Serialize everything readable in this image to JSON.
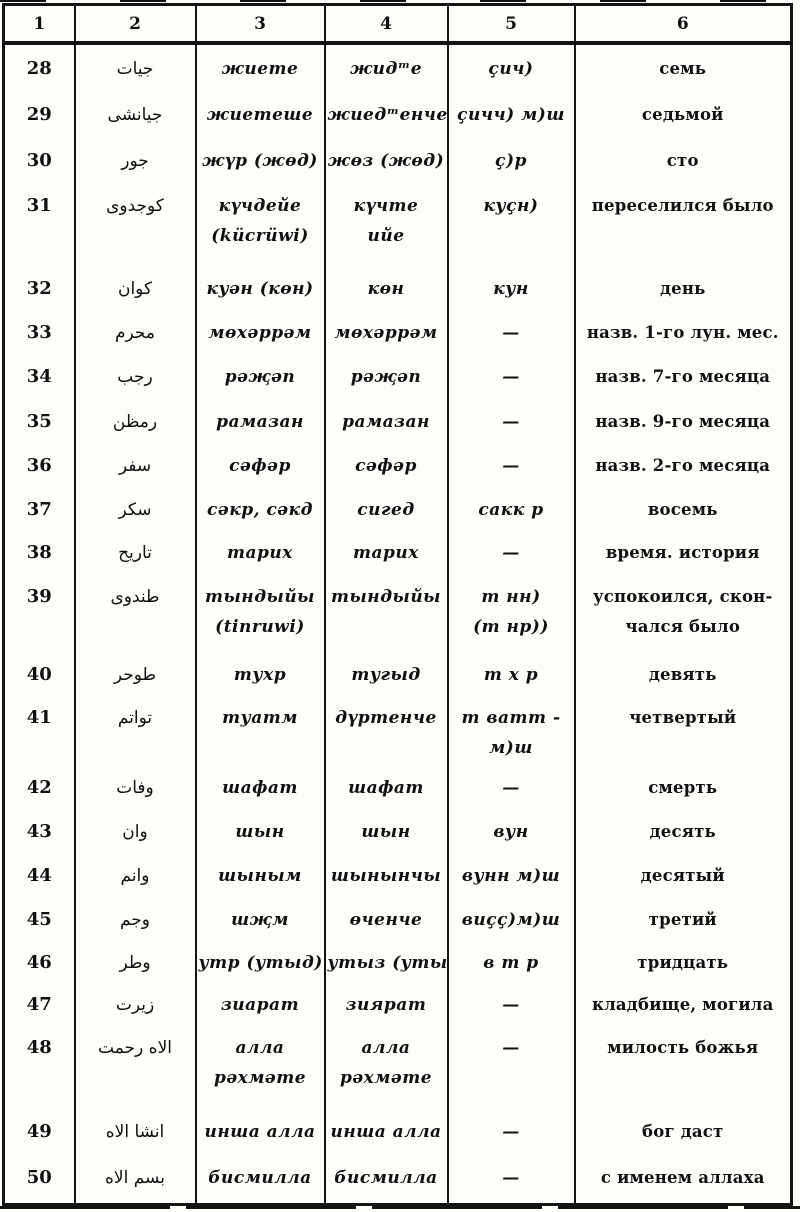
{
  "page": {
    "paper_color": "#fdfdfa",
    "ink_color": "#141414"
  },
  "table": {
    "headers": [
      "1",
      "2",
      "3",
      "4",
      "5",
      "6"
    ],
    "rows": [
      {
        "num": "28",
        "arabic": "جيات",
        "col3": [
          "жиете"
        ],
        "col4": [
          "жидᵐе"
        ],
        "col5": [
          "çич)"
        ],
        "meaning": [
          "семь"
        ]
      },
      {
        "num": "29",
        "arabic": "جيانشى",
        "col3": [
          "жиетеше"
        ],
        "col4": [
          "жиедᵐенче"
        ],
        "col5": [
          "çичч) м)ш"
        ],
        "meaning": [
          "седьмой"
        ]
      },
      {
        "num": "30",
        "arabic": "جور",
        "col3": [
          "жүр (жөд)"
        ],
        "col4": [
          "жөз (жөд)"
        ],
        "col5": [
          "ç)р"
        ],
        "meaning": [
          "сто"
        ]
      },
      {
        "num": "31",
        "arabic": "كوجدوى",
        "col3": [
          "күчдейе",
          "(kücrüwi)"
        ],
        "col4": [
          "күчте",
          "ийе"
        ],
        "col5": [
          "куçн)"
        ],
        "meaning": [
          "переселился было"
        ]
      },
      {
        "num": "32",
        "arabic": "كوان",
        "col3": [
          "куән (көн)"
        ],
        "col4": [
          "көн"
        ],
        "col5": [
          "кун"
        ],
        "meaning": [
          "день"
        ]
      },
      {
        "num": "33",
        "arabic": "محرم",
        "col3": [
          "мөхәррәм"
        ],
        "col4": [
          "мөхәррәм"
        ],
        "col5": [
          "—"
        ],
        "meaning": [
          "назв. 1-го лун. мес."
        ]
      },
      {
        "num": "34",
        "arabic": "رجب",
        "col3": [
          "рәҗәп"
        ],
        "col4": [
          "рәҗәп"
        ],
        "col5": [
          "—"
        ],
        "meaning": [
          "назв. 7-го месяца"
        ]
      },
      {
        "num": "35",
        "arabic": "رمظن",
        "col3": [
          "рамазан"
        ],
        "col4": [
          "рамазан"
        ],
        "col5": [
          "—"
        ],
        "meaning": [
          "назв. 9-го месяца"
        ]
      },
      {
        "num": "36",
        "arabic": "سفر",
        "col3": [
          "сәфәр"
        ],
        "col4": [
          "сәфәр"
        ],
        "col5": [
          "—"
        ],
        "meaning": [
          "назв. 2-го месяца"
        ]
      },
      {
        "num": "37",
        "arabic": "سكر",
        "col3": [
          "сәкр, сәкд"
        ],
        "col4": [
          "сигед"
        ],
        "col5": [
          "сакк р"
        ],
        "meaning": [
          "восемь"
        ]
      },
      {
        "num": "38",
        "arabic": "تاريح",
        "col3": [
          "тарих"
        ],
        "col4": [
          "тарих"
        ],
        "col5": [
          "—"
        ],
        "meaning": [
          "время. история"
        ]
      },
      {
        "num": "39",
        "arabic": "طندوى",
        "col3": [
          "тындыйы",
          "(tinruwi)"
        ],
        "col4": [
          "тындыйы"
        ],
        "col5": [
          "т нн)",
          "(т нр))"
        ],
        "meaning": [
          "успокоился, скон-",
          "чался было"
        ]
      },
      {
        "num": "40",
        "arabic": "طوحر",
        "col3": [
          "тухр"
        ],
        "col4": [
          "тугыд"
        ],
        "col5": [
          "т х р"
        ],
        "meaning": [
          "девять"
        ]
      },
      {
        "num": "41",
        "arabic": "تواتم",
        "col3": [
          "туатм"
        ],
        "col4": [
          "дүртенче"
        ],
        "col5": [
          "т ватт -",
          "м)ш"
        ],
        "meaning": [
          "четвертый"
        ]
      },
      {
        "num": "42",
        "arabic": "وفات",
        "col3": [
          "шафат"
        ],
        "col4": [
          "шафат"
        ],
        "col5": [
          "—"
        ],
        "meaning": [
          "смерть"
        ]
      },
      {
        "num": "43",
        "arabic": "وان",
        "col3": [
          "шын"
        ],
        "col4": [
          "шын"
        ],
        "col5": [
          "вун"
        ],
        "meaning": [
          "десять"
        ]
      },
      {
        "num": "44",
        "arabic": "وانم",
        "col3": [
          "шыным"
        ],
        "col4": [
          "шынынчы"
        ],
        "col5": [
          "вунн м)ш"
        ],
        "meaning": [
          "десятый"
        ]
      },
      {
        "num": "45",
        "arabic": "وجم",
        "col3": [
          "шҗм"
        ],
        "col4": [
          "өченче"
        ],
        "col5": [
          "виçç)м)ш"
        ],
        "meaning": [
          "третий"
        ]
      },
      {
        "num": "46",
        "arabic": "وطر",
        "col3": [
          "утр (утыд)"
        ],
        "col4": [
          "утыз (утыд)"
        ],
        "col5": [
          "в т р"
        ],
        "meaning": [
          "тридцать"
        ]
      },
      {
        "num": "47",
        "arabic": "زيرت",
        "col3": [
          "зиарат"
        ],
        "col4": [
          "зиярат"
        ],
        "col5": [
          "—"
        ],
        "meaning": [
          "кладбище, могила"
        ]
      },
      {
        "num": "48",
        "arabic": "الاه رحمت",
        "col3": [
          "алла",
          "рәхмәте"
        ],
        "col4": [
          "алла",
          "рәхмәте"
        ],
        "col5": [
          "—"
        ],
        "meaning": [
          "милость божья"
        ]
      },
      {
        "num": "49",
        "arabic": "انشا الاه",
        "col3": [
          "инша алла"
        ],
        "col4": [
          "инша алла"
        ],
        "col5": [
          "—"
        ],
        "meaning": [
          "бог даст"
        ]
      },
      {
        "num": "50",
        "arabic": "بسم الاه",
        "col3": [
          "бисмилла"
        ],
        "col4": [
          "бисмилла"
        ],
        "col5": [
          "—"
        ],
        "meaning": [
          "с именем аллаха"
        ]
      }
    ]
  }
}
